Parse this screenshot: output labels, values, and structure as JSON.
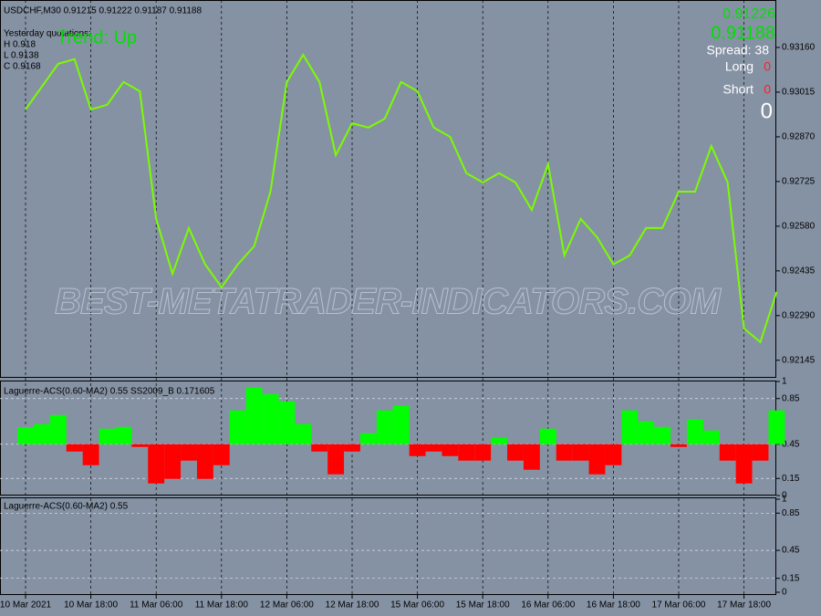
{
  "chart_data": [
    {
      "type": "line",
      "title": "USDCHF,M30  0.91215 0.91222 0.91187 0.91188",
      "annotations": [
        "Yesterday quotations:",
        "H 0.918",
        "L 0.9138",
        "C 0.9168",
        "Trend: Up",
        "0.91226",
        "0.91188",
        "Spread: 38",
        "Long",
        "0",
        "Short",
        "0",
        "0",
        "BEST-METATRADER-INDICATORS.COM"
      ],
      "categories": [
        "10 Mar 2021",
        null,
        null,
        null,
        "10 Mar 18:00",
        null,
        null,
        null,
        "11 Mar 06:00",
        null,
        null,
        null,
        "11 Mar 18:00",
        null,
        null,
        null,
        "12 Mar 06:00",
        null,
        null,
        null,
        "12 Mar 18:00",
        null,
        null,
        null,
        "15 Mar 06:00",
        null,
        null,
        null,
        "15 Mar 18:00",
        null,
        null,
        null,
        "16 Mar 06:00",
        null,
        null,
        null,
        "16 Mar 18:00",
        null,
        null,
        null,
        "17 Mar 06:00",
        null,
        null,
        null,
        "17 Mar 18:00",
        null,
        null
      ],
      "values": [
        0.92959,
        0.93033,
        0.93107,
        0.93122,
        0.92959,
        0.92974,
        0.93048,
        0.93018,
        0.92604,
        0.92426,
        0.92574,
        0.92456,
        0.92382,
        0.92456,
        0.92515,
        0.92692,
        0.93048,
        0.93136,
        0.93048,
        0.92811,
        0.92914,
        0.929,
        0.92929,
        0.93048,
        0.93018,
        0.929,
        0.9287,
        0.92752,
        0.92722,
        0.92752,
        0.92722,
        0.92633,
        0.92781,
        0.92485,
        0.92604,
        0.92544,
        0.92456,
        0.92485,
        0.92574,
        0.92574,
        0.92692,
        0.92692,
        0.9284,
        0.92722,
        0.92248,
        0.92204,
        0.92367
      ],
      "color": "#7cfc00",
      "ylim": [
        0.92091,
        0.93314
      ],
      "yticks": [
        {
          "value": 0.9316,
          "label": "0.93160"
        },
        0.93015,
        {
          "value": 0.9287,
          "label": "0.92870"
        },
        0.92725,
        {
          "value": 0.9258,
          "label": "0.92580"
        },
        0.92435,
        {
          "value": 0.9229,
          "label": "0.92290"
        },
        0.92145
      ]
    },
    {
      "type": "bar",
      "title": "Laguerre-ACS(0.60-MA2) 0.55  SS2009_B 0.171605",
      "values": [
        0.6,
        0.626,
        0.706,
        0.386,
        0.266,
        0.586,
        0.602,
        0.426,
        0.106,
        0.146,
        0.306,
        0.146,
        0.266,
        0.746,
        0.946,
        0.89,
        0.826,
        0.626,
        0.386,
        0.186,
        0.386,
        0.546,
        0.746,
        0.786,
        0.346,
        0.386,
        0.346,
        0.306,
        0.306,
        0.506,
        0.306,
        0.226,
        0.586,
        0.306,
        0.306,
        0.186,
        0.266,
        0.746,
        0.65,
        0.602,
        0.426,
        0.666,
        0.57,
        0.306,
        0.106,
        0.306,
        0.746
      ],
      "color_up": "#00ff00",
      "color_down": "#ff0000",
      "ylim": [
        0,
        1
      ],
      "yticks": [
        1,
        0.85,
        0.45,
        0.15,
        0
      ]
    },
    {
      "type": "line",
      "title": "Laguerre-ACS(0.60-MA2) 0.55",
      "ylim": [
        0,
        1
      ],
      "yticks": [
        1,
        0.85,
        0.45,
        0.15,
        0
      ]
    }
  ]
}
